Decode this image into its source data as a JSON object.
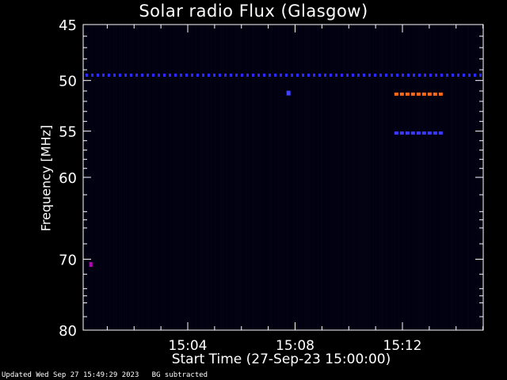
{
  "chart_data": {
    "type": "heatmap",
    "title": "Solar radio Flux (Glasgow)",
    "ylabel": "Frequency [MHz]",
    "xlabel": "Start Time (27-Sep-23 15:00:00)",
    "y_axis": {
      "range": [
        80,
        45
      ],
      "scale": "log",
      "tick_labels": [
        "45",
        "50",
        "55",
        "60",
        "70",
        "80"
      ]
    },
    "x_axis": {
      "range_minutes": [
        15.0,
        15.25
      ],
      "tick_labels": [
        "15:04",
        "15:08",
        "15:12"
      ]
    },
    "colormap": "blue-black with red/orange hot pixels",
    "features": [
      {
        "label": "persistent interference line",
        "freq_mhz": 49.5,
        "minutes": [
          15.0,
          15.25
        ],
        "color": "#2a2aff"
      },
      {
        "label": "intermittent emission band",
        "freq_mhz": 51.3,
        "minutes": [
          15.195,
          15.225
        ],
        "color": "#ff6a1a"
      },
      {
        "label": "secondary line",
        "freq_mhz": 55.2,
        "minutes": [
          15.195,
          15.225
        ],
        "color": "#3a3aff"
      },
      {
        "label": "isolated spot",
        "freq_mhz": 70.7,
        "minutes": [
          15.0055,
          15.006
        ],
        "color": "#c000c0"
      },
      {
        "label": "isolated spot",
        "freq_mhz": 51.2,
        "minutes": [
          15.128,
          15.129
        ],
        "color": "#4040ff"
      }
    ],
    "grid": false,
    "legend": "none"
  },
  "footer": {
    "updated": "Updated Wed Sep 27 15:49:29 2023",
    "bg_note": "BG subtracted"
  }
}
